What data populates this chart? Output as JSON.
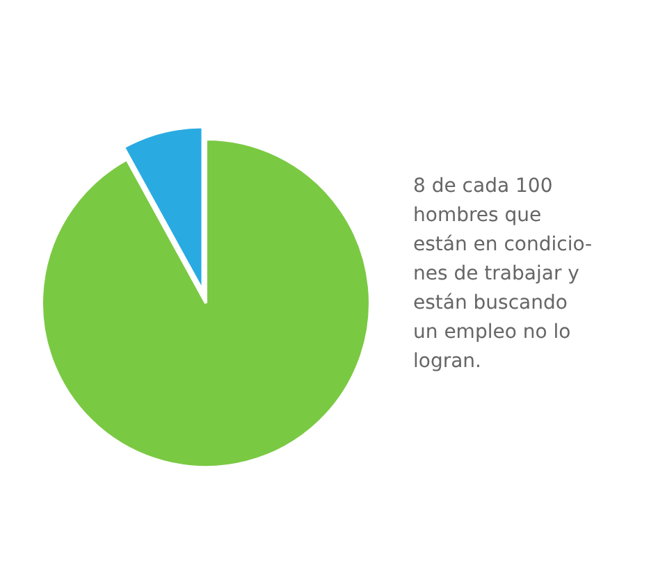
{
  "chart_data": {
    "type": "pie",
    "categories": [
      null,
      null
    ],
    "values": [
      92,
      8
    ],
    "colors": [
      "#7ac943",
      "#29abe2"
    ],
    "annotations": [
      "8 de cada 100\nhombres que\nestán en condicio-\nnes de trabajar y\nestán buscando\nun empleo no lo\nlogran."
    ]
  }
}
